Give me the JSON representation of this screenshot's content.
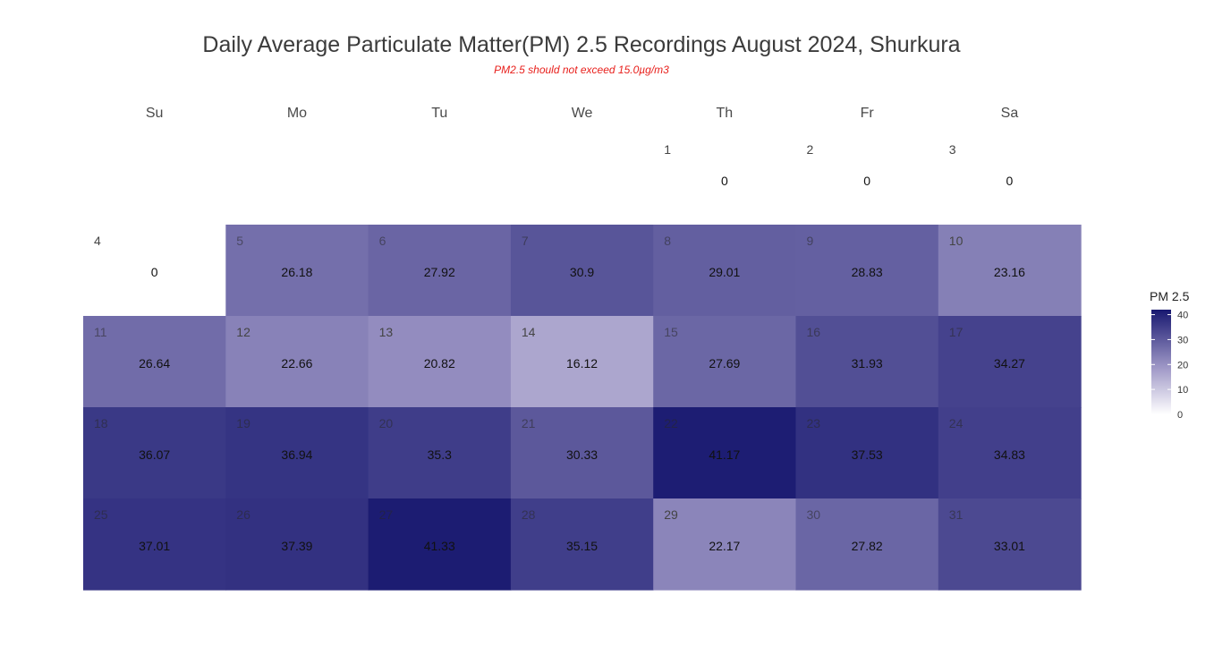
{
  "chart_data": {
    "type": "heatmap",
    "title": "Daily Average Particulate Matter(PM) 2.5 Recordings August 2024,  Shurkura",
    "subtitle": "PM2.5 should not exceed 15.0µg/m3",
    "weekdays": [
      "Su",
      "Mo",
      "Tu",
      "We",
      "Th",
      "Fr",
      "Sa"
    ],
    "first_weekday_index": 4,
    "days": [
      1,
      2,
      3,
      4,
      5,
      6,
      7,
      8,
      9,
      10,
      11,
      12,
      13,
      14,
      15,
      16,
      17,
      18,
      19,
      20,
      21,
      22,
      23,
      24,
      25,
      26,
      27,
      28,
      29,
      30,
      31
    ],
    "values": [
      "0",
      "0",
      "0",
      "0",
      "26.18",
      "27.92",
      "30.9",
      "29.01",
      "28.83",
      "23.16",
      "26.64",
      "22.66",
      "20.82",
      "16.12",
      "27.69",
      "31.93",
      "34.27",
      "36.07",
      "36.94",
      "35.3",
      "30.33",
      "41.17",
      "37.53",
      "34.83",
      "37.01",
      "37.39",
      "41.33",
      "35.15",
      "22.17",
      "27.82",
      "33.01"
    ],
    "legend": {
      "title": "PM 2.5",
      "ticks": [
        "0",
        "10",
        "20",
        "30",
        "40"
      ],
      "range": [
        0,
        42
      ],
      "colors": {
        "low": "#ffffff",
        "mid": "#9e97c6",
        "high": "#181870"
      }
    }
  }
}
